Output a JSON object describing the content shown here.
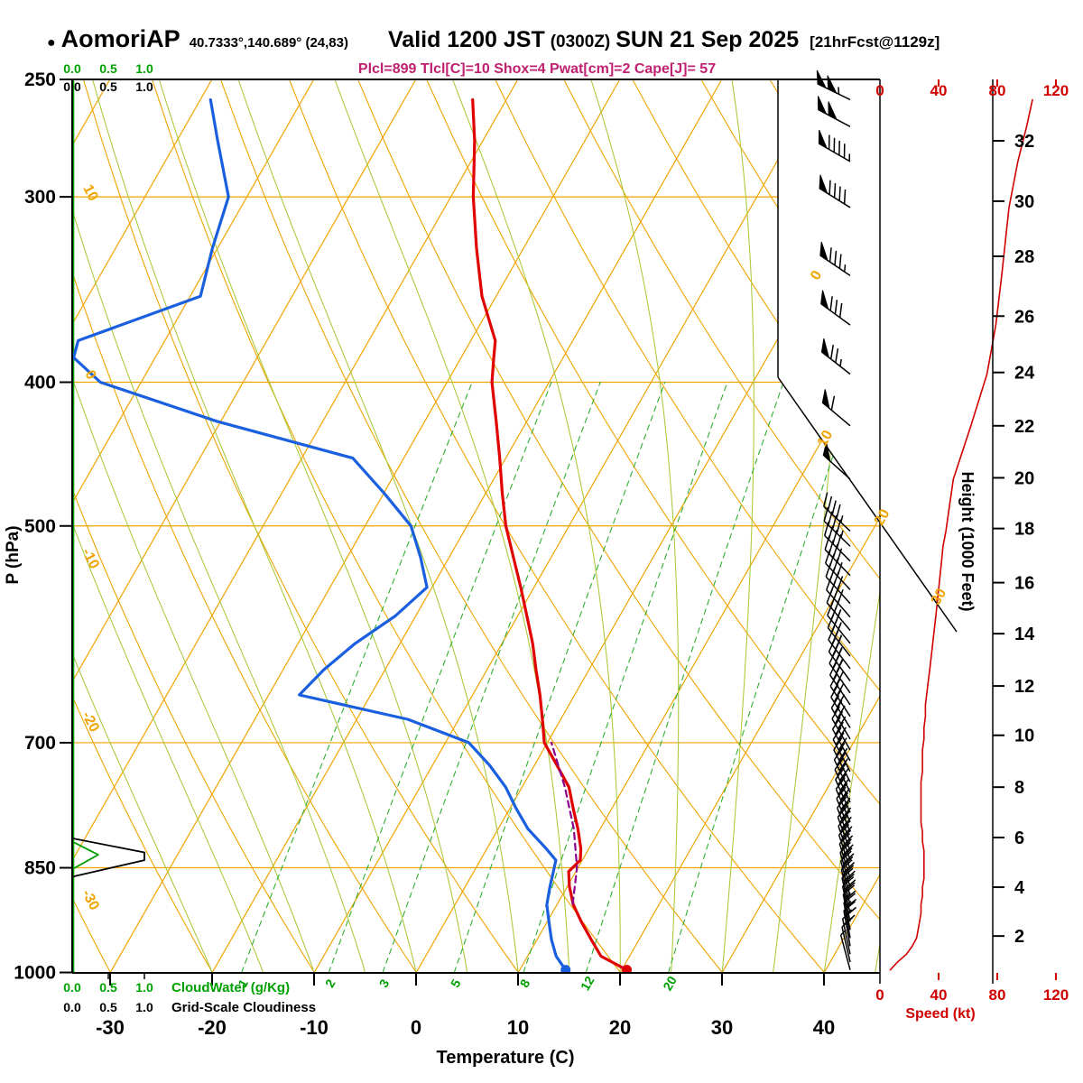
{
  "header": {
    "marker": "●",
    "station": "AomoriAP",
    "coords": "40.7333°,140.689° (24,83)",
    "valid_prefix": "Valid 1200 JST",
    "valid_z": "(0300Z)",
    "valid_suffix": "SUN 21 Sep 2025",
    "fcst": "[21hrFcst@1129z]",
    "indices_line": "Plcl=899 Tlcl[C]=10 Shox=4 Pwat[cm]=2 Cape[J]= 57",
    "indices": {
      "Plcl": 899,
      "Tlcl_C": 10,
      "Shox": 4,
      "Pwat_cm": 2,
      "Cape_J": 57
    }
  },
  "chart_data": {
    "type": "line",
    "chart_kind": "skew-t log-p thermodynamic sounding",
    "axes": {
      "pressure": {
        "label": "P (hPa)",
        "tick_labels": [
          250,
          300,
          400,
          500,
          700,
          850,
          1000
        ],
        "gridline_levels": [
          300,
          400,
          500,
          700,
          850
        ],
        "range": [
          250,
          1000
        ]
      },
      "temperature": {
        "label": "Temperature (C)",
        "tick_labels": [
          -30,
          -20,
          -10,
          0,
          10,
          20,
          30,
          40
        ]
      },
      "height": {
        "label": "Height (1000 Feet)",
        "ticks": [
          {
            "kft": 2,
            "p": 945
          },
          {
            "kft": 4,
            "p": 876
          },
          {
            "kft": 6,
            "p": 811
          },
          {
            "kft": 8,
            "p": 750
          },
          {
            "kft": 10,
            "p": 692
          },
          {
            "kft": 12,
            "p": 641
          },
          {
            "kft": 14,
            "p": 591
          },
          {
            "kft": 16,
            "p": 546
          },
          {
            "kft": 18,
            "p": 502
          },
          {
            "kft": 20,
            "p": 464
          },
          {
            "kft": 22,
            "p": 428
          },
          {
            "kft": 24,
            "p": 394
          },
          {
            "kft": 26,
            "p": 361
          },
          {
            "kft": 28,
            "p": 329
          },
          {
            "kft": 30,
            "p": 302
          },
          {
            "kft": 32,
            "p": 275
          }
        ]
      },
      "speed": {
        "label": "Speed (kt)",
        "tick_labels": [
          0,
          40,
          80,
          120
        ]
      },
      "cloud": {
        "scale_labels": [
          "0.0",
          "0.5",
          "1.0"
        ],
        "cloudwater_label": "CloudWater (g/Kg)",
        "cloudiness_label": "Grid-Scale Cloudiness"
      }
    },
    "grid": {
      "isotherm_step_c": 10,
      "isotherm_range_c": [
        -90,
        40
      ],
      "dry_adiabat_range_c": [
        -40,
        120
      ],
      "dry_adiabat_step_c": 10,
      "moist_adiabats_c": [
        -20,
        -15,
        -10,
        -5,
        0,
        5,
        10,
        15,
        20,
        25,
        30,
        35,
        40,
        45,
        50
      ],
      "mixing_ratio_gkg": [
        1,
        2,
        3,
        5,
        8,
        12,
        20
      ],
      "dry_adiabat_labels": [
        {
          "t": 10,
          "p": 297
        },
        {
          "t": 0,
          "p": 394
        },
        {
          "t": -10,
          "p": 524
        },
        {
          "t": -20,
          "p": 675
        },
        {
          "t": -30,
          "p": 890
        }
      ],
      "isotherm_boundary_labels": [
        {
          "t": 0,
          "p": 340
        },
        {
          "t": 10,
          "p": 438
        },
        {
          "t": 20,
          "p": 495
        },
        {
          "t": 30,
          "p": 560
        }
      ]
    },
    "sounding": {
      "pressure": [
        996,
        975,
        950,
        925,
        900,
        875,
        855,
        840,
        825,
        800,
        775,
        750,
        725,
        700,
        675,
        650,
        625,
        600,
        575,
        550,
        525,
        500,
        475,
        450,
        425,
        400,
        385,
        375,
        350,
        325,
        300,
        275,
        258
      ],
      "temperature": [
        20.5,
        17.2,
        15.3,
        13.4,
        11.6,
        10.2,
        9.3,
        9.8,
        9.2,
        7.8,
        6.2,
        4.6,
        2.2,
        -0.3,
        -1.8,
        -3.4,
        -5.2,
        -7.0,
        -9.1,
        -11.3,
        -13.7,
        -16.2,
        -18.4,
        -20.6,
        -23.0,
        -25.6,
        -26.8,
        -27.6,
        -31.4,
        -34.6,
        -37.8,
        -40.8,
        -43.3
      ],
      "dewpoint": [
        14.5,
        12.8,
        11.4,
        10.2,
        9.0,
        8.3,
        7.8,
        7.4,
        5.8,
        2.9,
        0.6,
        -1.6,
        -4.4,
        -7.7,
        -15.0,
        -27.0,
        -26.0,
        -24.4,
        -22.0,
        -20.5,
        -22.8,
        -25.5,
        -30.0,
        -35.0,
        -50.4,
        -64.0,
        -68.0,
        -68.5,
        -59.0,
        -60.5,
        -61.8,
        -66.0,
        -69.0
      ]
    },
    "parcel": {
      "pressure": [
        899,
        850,
        800,
        750,
        700
      ],
      "temperature": [
        11.5,
        9.9,
        7.4,
        4.2,
        0.4
      ]
    },
    "wind_barbs": [
      [
        996,
        345,
        7
      ],
      [
        984,
        347,
        12
      ],
      [
        972,
        348,
        18
      ],
      [
        960,
        350,
        22
      ],
      [
        948,
        350,
        25
      ],
      [
        936,
        349,
        26
      ],
      [
        924,
        348,
        27
      ],
      [
        912,
        347,
        28
      ],
      [
        900,
        346,
        28
      ],
      [
        888,
        345,
        29
      ],
      [
        876,
        344,
        29
      ],
      [
        864,
        343,
        30
      ],
      [
        852,
        342,
        30
      ],
      [
        840,
        341,
        30
      ],
      [
        828,
        340,
        30
      ],
      [
        816,
        339,
        29
      ],
      [
        804,
        338,
        29
      ],
      [
        792,
        337,
        28
      ],
      [
        780,
        336,
        28
      ],
      [
        768,
        335,
        28
      ],
      [
        756,
        334,
        28
      ],
      [
        744,
        333,
        28
      ],
      [
        732,
        332,
        29
      ],
      [
        720,
        331,
        29
      ],
      [
        708,
        330,
        29
      ],
      [
        696,
        329,
        30
      ],
      [
        684,
        328,
        30
      ],
      [
        672,
        327,
        31
      ],
      [
        660,
        326,
        31
      ],
      [
        648,
        325,
        32
      ],
      [
        636,
        324,
        33
      ],
      [
        624,
        323,
        34
      ],
      [
        612,
        322,
        35
      ],
      [
        600,
        321,
        36
      ],
      [
        588,
        320,
        37
      ],
      [
        576,
        319,
        38
      ],
      [
        564,
        318,
        39
      ],
      [
        552,
        317,
        40
      ],
      [
        540,
        316,
        41
      ],
      [
        528,
        315,
        42
      ],
      [
        516,
        314,
        43
      ],
      [
        504,
        313,
        45
      ],
      [
        465,
        312,
        50
      ],
      [
        428,
        310,
        62
      ],
      [
        395,
        308,
        73
      ],
      [
        366,
        306,
        79
      ],
      [
        339,
        304,
        83
      ],
      [
        305,
        302,
        88
      ],
      [
        284,
        300,
        94
      ],
      [
        269,
        298,
        100
      ],
      [
        258,
        296,
        104
      ]
    ],
    "cloud_water_gkg": [
      [
        996,
        0
      ],
      [
        852,
        0
      ],
      [
        833,
        0.36
      ],
      [
        816,
        0
      ],
      [
        250,
        0
      ]
    ],
    "grid_scale_cloudiness": [
      [
        996,
        0
      ],
      [
        862,
        0
      ],
      [
        840,
        1.0
      ],
      [
        830,
        1.0
      ],
      [
        812,
        0
      ],
      [
        250,
        0
      ]
    ],
    "colors": {
      "grid_orange": "#EFA400",
      "moist_green": "#A9C837",
      "mixing_green": "#2FAF2F",
      "label_green": "#00A000",
      "temperature_red": "#E00000",
      "dewpoint_blue": "#1A5FE0",
      "parcel_purple": "#8B008B",
      "speed_red": "#D00000",
      "indices_magenta": "#C02070",
      "black": "#000000"
    }
  }
}
